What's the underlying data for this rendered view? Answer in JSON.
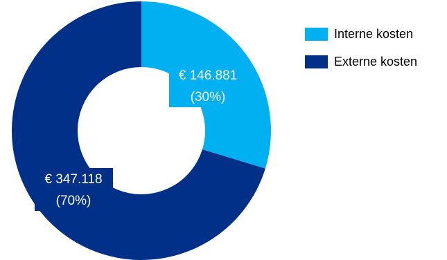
{
  "chart_data": {
    "type": "pie",
    "variant": "donut",
    "start_angle_deg": 0,
    "direction": "clockwise",
    "legend_position": "top-right",
    "series": [
      {
        "name": "Interne kosten",
        "value": 146881,
        "percent": 30,
        "color": "#00B0F0",
        "value_label": "€ 146.881",
        "percent_label": "(30%)"
      },
      {
        "name": "Externe kosten",
        "value": 347118,
        "percent": 70,
        "color": "#003087",
        "value_label": "€ 347.118",
        "percent_label": "(70%)"
      }
    ]
  }
}
